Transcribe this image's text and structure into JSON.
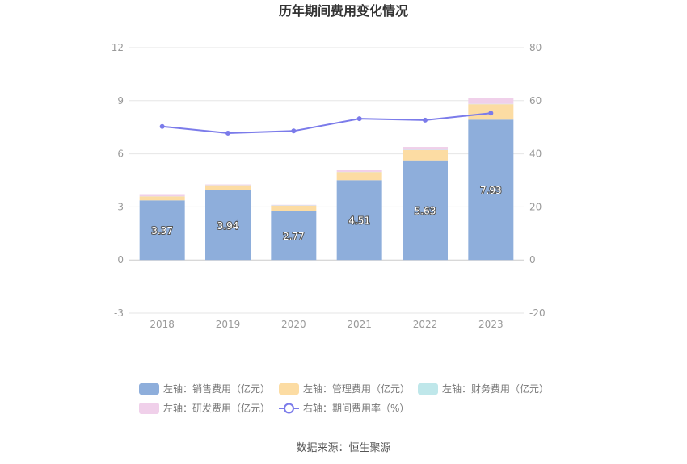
{
  "chart_data": {
    "type": "bar",
    "title": "历年期间费用变化情况",
    "categories": [
      "2018",
      "2019",
      "2020",
      "2021",
      "2022",
      "2023"
    ],
    "left_axis": {
      "ticks": [
        "12",
        "9",
        "6",
        "3",
        "0",
        "-3"
      ],
      "range": [
        -3,
        12
      ]
    },
    "right_axis": {
      "ticks": [
        "80",
        "60",
        "40",
        "20",
        "0",
        "-20"
      ],
      "range": [
        -20,
        80
      ]
    },
    "series": [
      {
        "name": "左轴：销售费用（亿元）",
        "axis": "left",
        "kind": "bar",
        "color": "#8eaedb",
        "values": [
          3.37,
          3.94,
          2.77,
          4.51,
          5.63,
          7.93
        ],
        "labels": [
          "3.37",
          "3.94",
          "2.77",
          "4.51",
          "5.63",
          "7.93"
        ]
      },
      {
        "name": "左轴：管理费用（亿元）",
        "axis": "left",
        "kind": "bar",
        "color": "#fcdca3",
        "values": [
          0.22,
          0.28,
          0.3,
          0.46,
          0.58,
          0.87
        ]
      },
      {
        "name": "左轴：财务费用（亿元）",
        "axis": "left",
        "kind": "bar",
        "color": "#bfe7ea",
        "values": [
          0.01,
          0.01,
          0.02,
          0.01,
          0.02,
          0.02
        ]
      },
      {
        "name": "左轴：研发费用（亿元）",
        "axis": "left",
        "kind": "bar",
        "color": "#f0d0ea",
        "values": [
          0.08,
          0.04,
          0.03,
          0.09,
          0.16,
          0.32
        ]
      },
      {
        "name": "右轴：期间费用率（%）",
        "axis": "right",
        "kind": "line",
        "color": "#7b7bea",
        "values": [
          50.3,
          47.8,
          48.6,
          53.2,
          52.7,
          55.3
        ]
      }
    ],
    "source": "数据来源：恒生聚源"
  }
}
